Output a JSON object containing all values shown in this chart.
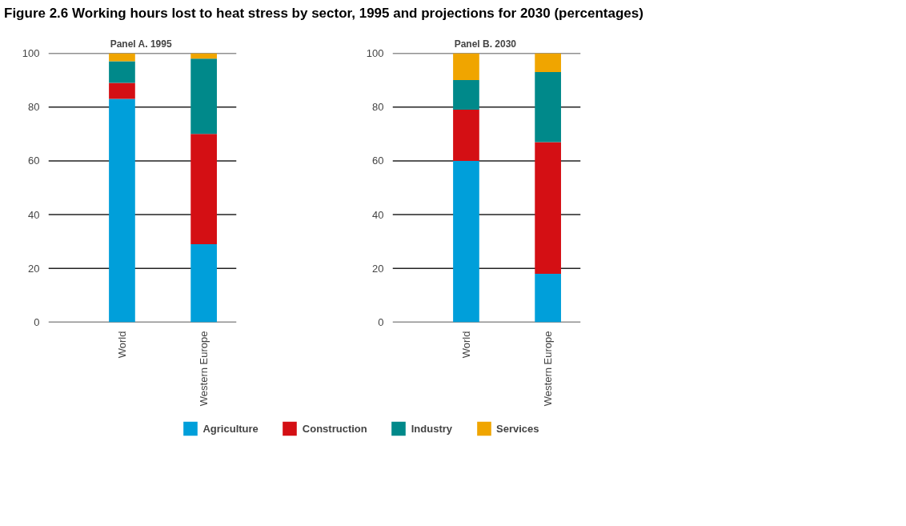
{
  "chart_data": [
    {
      "type": "bar",
      "title": "Figure 2.6  Working hours lost to heat stress by sector, 1995 and projections for 2030 (percentages)",
      "subtitle": "Panel A.  1995",
      "categories": [
        "World",
        "Western Europe"
      ],
      "stacked": true,
      "ylim": [
        0,
        100
      ],
      "yticks": [
        0,
        20,
        40,
        60,
        80,
        100
      ],
      "grid": "y",
      "legend": "bottom",
      "series": [
        {
          "name": "Agriculture",
          "color": "#009fda",
          "values": [
            83,
            29
          ]
        },
        {
          "name": "Construction",
          "color": "#d40f14",
          "values": [
            6,
            41
          ]
        },
        {
          "name": "Industry",
          "color": "#00898a",
          "values": [
            8,
            28
          ]
        },
        {
          "name": "Services",
          "color": "#f0a500",
          "values": [
            3,
            2
          ]
        }
      ]
    },
    {
      "type": "bar",
      "subtitle": "Panel B.  2030",
      "categories": [
        "World",
        "Western Europe"
      ],
      "stacked": true,
      "ylim": [
        0,
        100
      ],
      "yticks": [
        0,
        20,
        40,
        60,
        80,
        100
      ],
      "grid": "y",
      "series": [
        {
          "color": "#009fda",
          "values": [
            60,
            18
          ]
        },
        {
          "color": "#d40f14",
          "values": [
            19,
            49
          ]
        },
        {
          "color": "#00898a",
          "values": [
            11,
            26
          ]
        },
        {
          "color": "#f0a500",
          "values": [
            10,
            7
          ]
        }
      ]
    }
  ]
}
